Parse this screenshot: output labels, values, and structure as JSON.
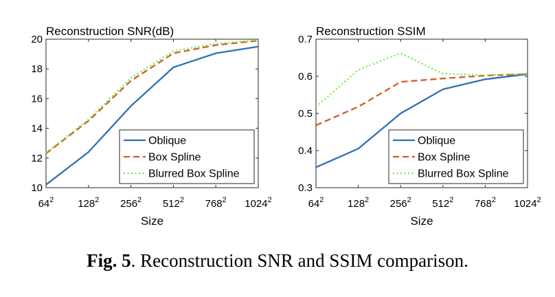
{
  "chart_data": [
    {
      "type": "line",
      "title": "Reconstruction SNR(dB)",
      "xlabel": "Size",
      "ylabel": "",
      "x_tick_bases": [
        "64",
        "128",
        "256",
        "512",
        "768",
        "1024"
      ],
      "x_tick_exponent": "2",
      "ylim": [
        10,
        20
      ],
      "yticks": [
        10,
        12,
        14,
        16,
        18,
        20
      ],
      "ytick_labels": [
        "10",
        "12",
        "14",
        "16",
        "18",
        "20"
      ],
      "grid": false,
      "legend_position": "bottom-right",
      "series": [
        {
          "name": "Oblique",
          "color": "#2f6fb5",
          "style": "solid",
          "values": [
            10.2,
            12.4,
            15.5,
            18.1,
            19.05,
            19.5
          ]
        },
        {
          "name": "Box Spline",
          "color": "#d45a27",
          "style": "dashed",
          "values": [
            12.3,
            14.5,
            17.2,
            19.05,
            19.6,
            19.9
          ]
        },
        {
          "name": "Blurred Box Spline",
          "color": "#66ee44",
          "style": "dotted",
          "values": [
            12.35,
            14.6,
            17.4,
            19.2,
            19.7,
            19.95
          ]
        }
      ]
    },
    {
      "type": "line",
      "title": "Reconstruction SSIM",
      "xlabel": "Size",
      "ylabel": "",
      "x_tick_bases": [
        "64",
        "128",
        "256",
        "512",
        "768",
        "1024"
      ],
      "x_tick_exponent": "2",
      "ylim": [
        0.3,
        0.7
      ],
      "yticks": [
        0.3,
        0.4,
        0.5,
        0.6,
        0.7
      ],
      "ytick_labels": [
        "0.3",
        "0.4",
        "0.5",
        "0.6",
        "0.7"
      ],
      "grid": false,
      "legend_position": "bottom-right",
      "series": [
        {
          "name": "Oblique",
          "color": "#2f6fb5",
          "style": "solid",
          "values": [
            0.355,
            0.405,
            0.5,
            0.565,
            0.592,
            0.606
          ]
        },
        {
          "name": "Box Spline",
          "color": "#d45a27",
          "style": "dashed",
          "values": [
            0.468,
            0.518,
            0.585,
            0.594,
            0.602,
            0.606
          ]
        },
        {
          "name": "Blurred Box Spline",
          "color": "#66ee44",
          "style": "dotted",
          "values": [
            0.518,
            0.617,
            0.662,
            0.607,
            0.603,
            0.607
          ]
        }
      ]
    }
  ],
  "caption": {
    "label": "Fig. 5",
    "text": ". Reconstruction SNR and SSIM comparison."
  }
}
